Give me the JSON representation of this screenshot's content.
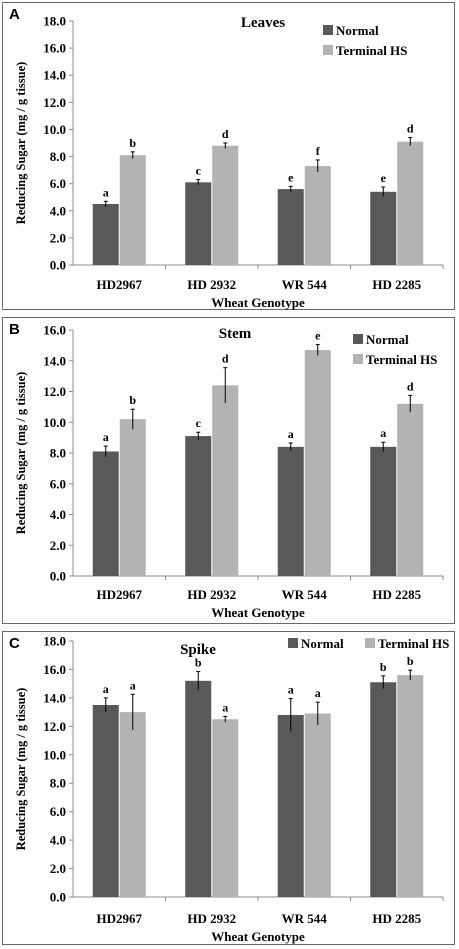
{
  "colors": {
    "normal": "#595959",
    "terminal_hs": "#b3b3b3",
    "axis": "#8c8c8c",
    "error_bar": "#000000"
  },
  "chart_data": [
    {
      "type": "bar",
      "panel_label": "A",
      "title": "Leaves",
      "categories": [
        "HD2967",
        "HD 2932",
        "WR 544",
        "HD 2285"
      ],
      "series": [
        {
          "name": "Normal",
          "values": [
            4.5,
            6.1,
            5.6,
            5.4
          ],
          "errors": [
            0.2,
            0.2,
            0.2,
            0.35
          ],
          "letters": [
            "a",
            "c",
            "e",
            "e"
          ]
        },
        {
          "name": "Terminal HS",
          "values": [
            8.1,
            8.8,
            7.3,
            9.1
          ],
          "errors": [
            0.25,
            0.2,
            0.45,
            0.3
          ],
          "letters": [
            "b",
            "d",
            "f",
            "d"
          ]
        }
      ],
      "xlabel": "Wheat Genotype",
      "ylabel": "Reducing Sugar (mg / g tissue)",
      "ylim": [
        0,
        18
      ],
      "yticks": [
        "0.0",
        "2.0",
        "4.0",
        "6.0",
        "8.0",
        "10.0",
        "12.0",
        "14.0",
        "16.0",
        "18.0"
      ],
      "legend": "top-right",
      "grid": false
    },
    {
      "type": "bar",
      "panel_label": "B",
      "title": "Stem",
      "categories": [
        "HD2967",
        "HD 2932",
        "WR 544",
        "HD 2285"
      ],
      "series": [
        {
          "name": "Normal",
          "values": [
            8.1,
            9.1,
            8.4,
            8.4
          ],
          "errors": [
            0.35,
            0.25,
            0.25,
            0.3
          ],
          "letters": [
            "a",
            "c",
            "a",
            "a"
          ]
        },
        {
          "name": "Terminal HS",
          "values": [
            10.2,
            12.4,
            14.7,
            11.2
          ],
          "errors": [
            0.65,
            1.15,
            0.35,
            0.55
          ],
          "letters": [
            "b",
            "d",
            "e",
            "d"
          ]
        }
      ],
      "xlabel": "Wheat Genotype",
      "ylabel": "Reducing Sugar (mg / g tissue)",
      "ylim": [
        0,
        16
      ],
      "yticks": [
        "0.0",
        "2.0",
        "4.0",
        "6.0",
        "8.0",
        "10.0",
        "12.0",
        "14.0",
        "16.0"
      ],
      "legend": "top-right",
      "grid": false
    },
    {
      "type": "bar",
      "panel_label": "C",
      "title": "Spike",
      "categories": [
        "HD2967",
        "HD 2932",
        "WR 544",
        "HD 2285"
      ],
      "series": [
        {
          "name": "Normal",
          "values": [
            13.5,
            15.2,
            12.8,
            15.1
          ],
          "errors": [
            0.5,
            0.65,
            1.15,
            0.45
          ],
          "letters": [
            "a",
            "b",
            "a",
            "b"
          ]
        },
        {
          "name": "Terminal HS",
          "values": [
            13.0,
            12.5,
            12.9,
            15.6
          ],
          "errors": [
            1.25,
            0.2,
            0.8,
            0.35
          ],
          "letters": [
            "a",
            "a",
            "a",
            "b"
          ]
        }
      ],
      "xlabel": "Wheat Genotype",
      "ylabel": "Reducing Sugar (mg / g tissue)",
      "ylim": [
        0,
        18
      ],
      "yticks": [
        "0.0",
        "2.0",
        "4.0",
        "6.0",
        "8.0",
        "10.0",
        "12.0",
        "14.0",
        "16.0",
        "18.0"
      ],
      "legend": "top-right",
      "grid": false
    }
  ]
}
